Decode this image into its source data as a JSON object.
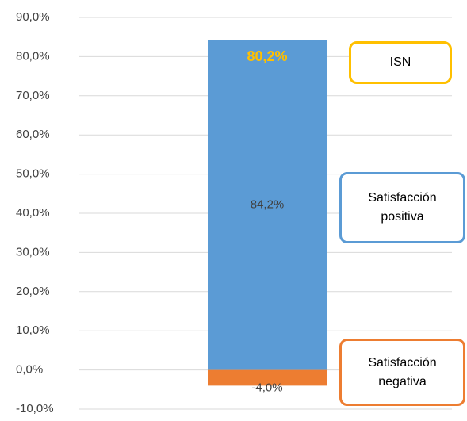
{
  "chart_data": {
    "type": "bar",
    "stacked": true,
    "categories": [
      null
    ],
    "series": [
      {
        "name": "Satisfacción positiva",
        "color": "#5b9bd5",
        "values": [
          84.2
        ],
        "value_labels": [
          "84,2%"
        ]
      },
      {
        "name": "Satisfacción negativa",
        "color": "#ed7d31",
        "values": [
          -4.0
        ],
        "value_labels": [
          "-4,0%"
        ]
      }
    ],
    "annotations": [
      {
        "text": "ISN",
        "value": 80.2,
        "label": "80,2%",
        "color": "#ffc000"
      }
    ],
    "ylim": [
      -10,
      90
    ],
    "yticks": [
      {
        "value": -10,
        "label": "-10,0%"
      },
      {
        "value": 0,
        "label": "0,0%"
      },
      {
        "value": 10,
        "label": "10,0%"
      },
      {
        "value": 20,
        "label": "20,0%"
      },
      {
        "value": 30,
        "label": "30,0%"
      },
      {
        "value": 40,
        "label": "40,0%"
      },
      {
        "value": 50,
        "label": "50,0%"
      },
      {
        "value": 60,
        "label": "60,0%"
      },
      {
        "value": 70,
        "label": "70,0%"
      },
      {
        "value": 80,
        "label": "80,0%"
      },
      {
        "value": 90,
        "label": "90,0%"
      }
    ],
    "grid": true
  }
}
